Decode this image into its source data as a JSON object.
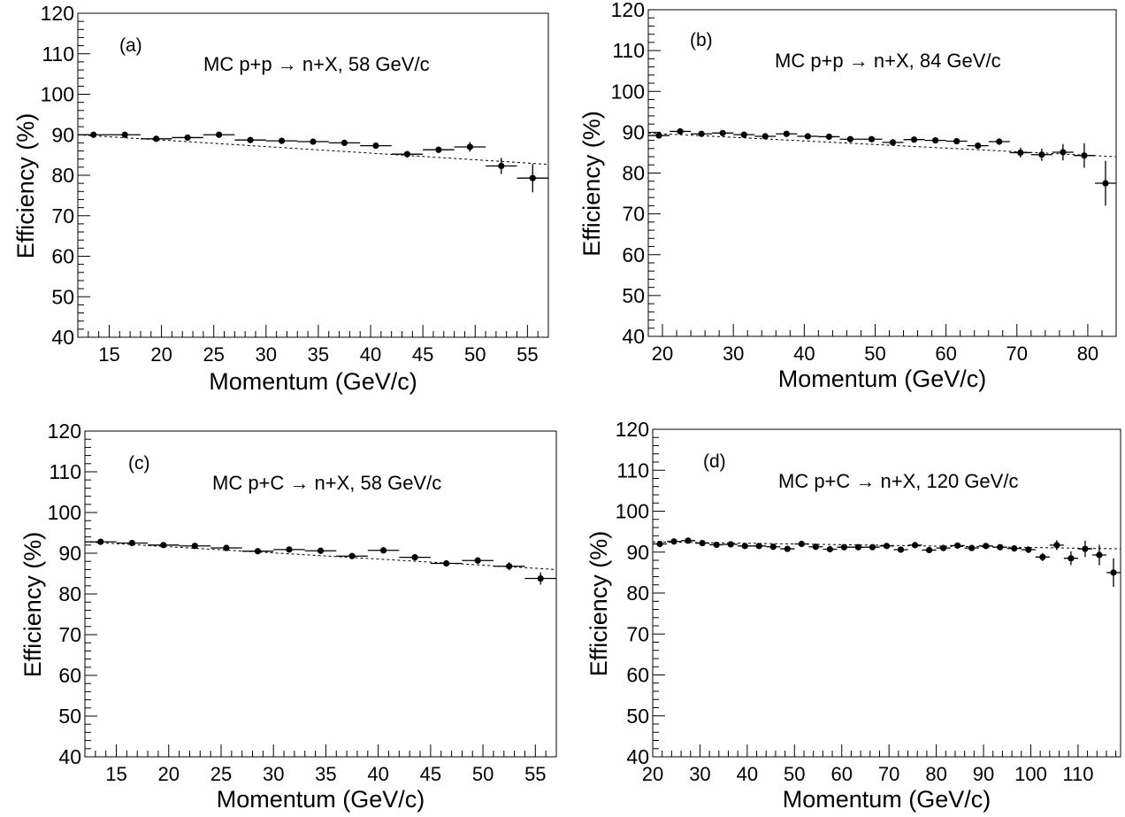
{
  "chart_data": [
    {
      "type": "scatter",
      "panel_label": "(a)",
      "annotation": "MC p+p → n+X, 58 GeV/c",
      "xlabel": "Momentum  (GeV/c)",
      "ylabel": "Efficiency  (%)",
      "xlim": [
        12,
        57
      ],
      "ylim": [
        40,
        120
      ],
      "xticks": [
        15,
        20,
        25,
        30,
        35,
        40,
        45,
        50,
        55
      ],
      "yticks": [
        40,
        50,
        60,
        70,
        80,
        90,
        100,
        110,
        120
      ],
      "grid": false,
      "fit": {
        "style": "dashed",
        "x": [
          12,
          57
        ],
        "y": [
          90.0,
          82.7
        ]
      },
      "points": [
        {
          "x": 13.5,
          "y": 90.0,
          "xerr": 1.5,
          "yerr": 0.4
        },
        {
          "x": 16.5,
          "y": 90.0,
          "xerr": 1.5,
          "yerr": 0.4
        },
        {
          "x": 19.5,
          "y": 89.0,
          "xerr": 1.5,
          "yerr": 0.5
        },
        {
          "x": 22.5,
          "y": 89.3,
          "xerr": 1.5,
          "yerr": 0.5
        },
        {
          "x": 25.5,
          "y": 90.0,
          "xerr": 1.5,
          "yerr": 0.5
        },
        {
          "x": 28.5,
          "y": 88.7,
          "xerr": 1.5,
          "yerr": 0.5
        },
        {
          "x": 31.5,
          "y": 88.5,
          "xerr": 1.5,
          "yerr": 0.5
        },
        {
          "x": 34.5,
          "y": 88.3,
          "xerr": 1.5,
          "yerr": 0.5
        },
        {
          "x": 37.5,
          "y": 88.0,
          "xerr": 1.5,
          "yerr": 0.6
        },
        {
          "x": 40.5,
          "y": 87.3,
          "xerr": 1.5,
          "yerr": 0.6
        },
        {
          "x": 43.5,
          "y": 85.2,
          "xerr": 1.5,
          "yerr": 0.8
        },
        {
          "x": 46.5,
          "y": 86.3,
          "xerr": 1.5,
          "yerr": 0.8
        },
        {
          "x": 49.5,
          "y": 87.0,
          "xerr": 1.5,
          "yerr": 1.2
        },
        {
          "x": 52.5,
          "y": 82.3,
          "xerr": 1.5,
          "yerr": 2.0
        },
        {
          "x": 55.5,
          "y": 79.3,
          "xerr": 1.5,
          "yerr": 3.5
        }
      ]
    },
    {
      "type": "scatter",
      "panel_label": "(b)",
      "annotation": "MC p+p → n+X, 84 GeV/c",
      "xlabel": "Momentum  (GeV/c)",
      "ylabel": "Efficiency  (%)",
      "xlim": [
        18,
        84
      ],
      "ylim": [
        40,
        120
      ],
      "xticks": [
        20,
        30,
        40,
        50,
        60,
        70,
        80
      ],
      "yticks": [
        40,
        50,
        60,
        70,
        80,
        90,
        100,
        110,
        120
      ],
      "grid": false,
      "fit": {
        "style": "dashed",
        "x": [
          18,
          84
        ],
        "y": [
          89.8,
          84.0
        ]
      },
      "points": [
        {
          "x": 19.5,
          "y": 89.2,
          "xerr": 1.5,
          "yerr": 0.5
        },
        {
          "x": 22.5,
          "y": 90.2,
          "xerr": 1.5,
          "yerr": 0.5
        },
        {
          "x": 25.5,
          "y": 89.6,
          "xerr": 1.5,
          "yerr": 0.5
        },
        {
          "x": 28.5,
          "y": 89.8,
          "xerr": 1.5,
          "yerr": 0.5
        },
        {
          "x": 31.5,
          "y": 89.4,
          "xerr": 1.5,
          "yerr": 0.5
        },
        {
          "x": 34.5,
          "y": 89.0,
          "xerr": 1.5,
          "yerr": 0.5
        },
        {
          "x": 37.5,
          "y": 89.6,
          "xerr": 1.5,
          "yerr": 0.5
        },
        {
          "x": 40.5,
          "y": 89.0,
          "xerr": 1.5,
          "yerr": 0.5
        },
        {
          "x": 43.5,
          "y": 88.9,
          "xerr": 1.5,
          "yerr": 0.5
        },
        {
          "x": 46.5,
          "y": 88.3,
          "xerr": 1.5,
          "yerr": 0.5
        },
        {
          "x": 49.5,
          "y": 88.3,
          "xerr": 1.5,
          "yerr": 0.6
        },
        {
          "x": 52.5,
          "y": 87.5,
          "xerr": 1.5,
          "yerr": 0.6
        },
        {
          "x": 55.5,
          "y": 88.2,
          "xerr": 1.5,
          "yerr": 0.6
        },
        {
          "x": 58.5,
          "y": 88.0,
          "xerr": 1.5,
          "yerr": 0.6
        },
        {
          "x": 61.5,
          "y": 87.8,
          "xerr": 1.5,
          "yerr": 0.7
        },
        {
          "x": 64.5,
          "y": 86.7,
          "xerr": 1.5,
          "yerr": 0.7
        },
        {
          "x": 67.5,
          "y": 87.7,
          "xerr": 1.5,
          "yerr": 0.8
        },
        {
          "x": 70.5,
          "y": 85.0,
          "xerr": 1.5,
          "yerr": 1.2
        },
        {
          "x": 73.5,
          "y": 84.5,
          "xerr": 1.5,
          "yerr": 1.5
        },
        {
          "x": 76.5,
          "y": 85.1,
          "xerr": 1.5,
          "yerr": 2.0
        },
        {
          "x": 79.5,
          "y": 84.3,
          "xerr": 1.5,
          "yerr": 3.0
        },
        {
          "x": 82.5,
          "y": 77.5,
          "xerr": 1.5,
          "yerr": 5.5
        }
      ]
    },
    {
      "type": "scatter",
      "panel_label": "(c)",
      "annotation": "MC p+C → n+X, 58 GeV/c",
      "xlabel": "Momentum  (GeV/c)",
      "ylabel": "Efficiency  (%)",
      "xlim": [
        12,
        57
      ],
      "ylim": [
        40,
        120
      ],
      "xticks": [
        15,
        20,
        25,
        30,
        35,
        40,
        45,
        50,
        55
      ],
      "yticks": [
        40,
        50,
        60,
        70,
        80,
        90,
        100,
        110,
        120
      ],
      "grid": false,
      "fit": {
        "style": "dashed",
        "x": [
          12,
          57
        ],
        "y": [
          92.8,
          86.0
        ]
      },
      "points": [
        {
          "x": 13.5,
          "y": 92.8,
          "xerr": 1.5,
          "yerr": 0.4
        },
        {
          "x": 16.5,
          "y": 92.5,
          "xerr": 1.5,
          "yerr": 0.4
        },
        {
          "x": 19.5,
          "y": 92.0,
          "xerr": 1.5,
          "yerr": 0.4
        },
        {
          "x": 22.5,
          "y": 91.8,
          "xerr": 1.5,
          "yerr": 0.4
        },
        {
          "x": 25.5,
          "y": 91.3,
          "xerr": 1.5,
          "yerr": 0.4
        },
        {
          "x": 28.5,
          "y": 90.5,
          "xerr": 1.5,
          "yerr": 0.5
        },
        {
          "x": 31.5,
          "y": 90.9,
          "xerr": 1.5,
          "yerr": 0.5
        },
        {
          "x": 34.5,
          "y": 90.6,
          "xerr": 1.5,
          "yerr": 0.5
        },
        {
          "x": 37.5,
          "y": 89.3,
          "xerr": 1.5,
          "yerr": 0.5
        },
        {
          "x": 40.5,
          "y": 90.7,
          "xerr": 1.5,
          "yerr": 0.6
        },
        {
          "x": 43.5,
          "y": 89.0,
          "xerr": 1.5,
          "yerr": 0.6
        },
        {
          "x": 46.5,
          "y": 87.5,
          "xerr": 1.5,
          "yerr": 0.7
        },
        {
          "x": 49.5,
          "y": 88.2,
          "xerr": 1.5,
          "yerr": 0.8
        },
        {
          "x": 52.5,
          "y": 86.8,
          "xerr": 1.5,
          "yerr": 1.0
        },
        {
          "x": 55.5,
          "y": 83.8,
          "xerr": 1.5,
          "yerr": 1.5
        }
      ]
    },
    {
      "type": "scatter",
      "panel_label": "(d)",
      "annotation": "MC p+C → n+X, 120 GeV/c",
      "xlabel": "Momentum  (GeV/c)",
      "ylabel": "Efficiency  (%)",
      "xlim": [
        20,
        119
      ],
      "ylim": [
        40,
        120
      ],
      "xticks": [
        20,
        30,
        40,
        50,
        60,
        70,
        80,
        90,
        100,
        110
      ],
      "yticks": [
        40,
        50,
        60,
        70,
        80,
        90,
        100,
        110,
        120
      ],
      "grid": false,
      "fit": {
        "style": "dashed",
        "x": [
          20,
          119
        ],
        "y": [
          92.5,
          90.8
        ]
      },
      "points": [
        {
          "x": 21.5,
          "y": 92.0,
          "xerr": 1.5,
          "yerr": 0.4
        },
        {
          "x": 24.5,
          "y": 92.6,
          "xerr": 1.5,
          "yerr": 0.4
        },
        {
          "x": 27.5,
          "y": 92.8,
          "xerr": 1.5,
          "yerr": 0.4
        },
        {
          "x": 30.5,
          "y": 92.2,
          "xerr": 1.5,
          "yerr": 0.4
        },
        {
          "x": 33.5,
          "y": 91.8,
          "xerr": 1.5,
          "yerr": 0.4
        },
        {
          "x": 36.5,
          "y": 91.9,
          "xerr": 1.5,
          "yerr": 0.4
        },
        {
          "x": 39.5,
          "y": 91.5,
          "xerr": 1.5,
          "yerr": 0.4
        },
        {
          "x": 42.5,
          "y": 91.5,
          "xerr": 1.5,
          "yerr": 0.4
        },
        {
          "x": 45.5,
          "y": 91.3,
          "xerr": 1.5,
          "yerr": 0.4
        },
        {
          "x": 48.5,
          "y": 90.8,
          "xerr": 1.5,
          "yerr": 0.5
        },
        {
          "x": 51.5,
          "y": 92.0,
          "xerr": 1.5,
          "yerr": 0.5
        },
        {
          "x": 54.5,
          "y": 91.3,
          "xerr": 1.5,
          "yerr": 0.5
        },
        {
          "x": 57.5,
          "y": 90.7,
          "xerr": 1.5,
          "yerr": 0.5
        },
        {
          "x": 60.5,
          "y": 91.2,
          "xerr": 1.5,
          "yerr": 0.5
        },
        {
          "x": 63.5,
          "y": 91.2,
          "xerr": 1.5,
          "yerr": 0.5
        },
        {
          "x": 66.5,
          "y": 91.2,
          "xerr": 1.5,
          "yerr": 0.5
        },
        {
          "x": 69.5,
          "y": 91.5,
          "xerr": 1.5,
          "yerr": 0.5
        },
        {
          "x": 72.5,
          "y": 90.6,
          "xerr": 1.5,
          "yerr": 0.5
        },
        {
          "x": 75.5,
          "y": 91.7,
          "xerr": 1.5,
          "yerr": 0.5
        },
        {
          "x": 78.5,
          "y": 90.5,
          "xerr": 1.5,
          "yerr": 0.5
        },
        {
          "x": 81.5,
          "y": 91.0,
          "xerr": 1.5,
          "yerr": 0.5
        },
        {
          "x": 84.5,
          "y": 91.6,
          "xerr": 1.5,
          "yerr": 0.5
        },
        {
          "x": 87.5,
          "y": 91.0,
          "xerr": 1.5,
          "yerr": 0.6
        },
        {
          "x": 90.5,
          "y": 91.5,
          "xerr": 1.5,
          "yerr": 0.6
        },
        {
          "x": 93.5,
          "y": 91.2,
          "xerr": 1.5,
          "yerr": 0.7
        },
        {
          "x": 96.5,
          "y": 90.9,
          "xerr": 1.5,
          "yerr": 0.7
        },
        {
          "x": 99.5,
          "y": 90.6,
          "xerr": 1.5,
          "yerr": 0.8
        },
        {
          "x": 102.5,
          "y": 88.8,
          "xerr": 1.5,
          "yerr": 1.0
        },
        {
          "x": 105.5,
          "y": 91.7,
          "xerr": 1.5,
          "yerr": 1.2
        },
        {
          "x": 108.5,
          "y": 88.5,
          "xerr": 1.5,
          "yerr": 1.7
        },
        {
          "x": 111.5,
          "y": 90.8,
          "xerr": 1.5,
          "yerr": 2.0
        },
        {
          "x": 114.5,
          "y": 89.3,
          "xerr": 1.5,
          "yerr": 2.5
        },
        {
          "x": 117.5,
          "y": 85.0,
          "xerr": 1.5,
          "yerr": 3.5
        }
      ]
    }
  ]
}
